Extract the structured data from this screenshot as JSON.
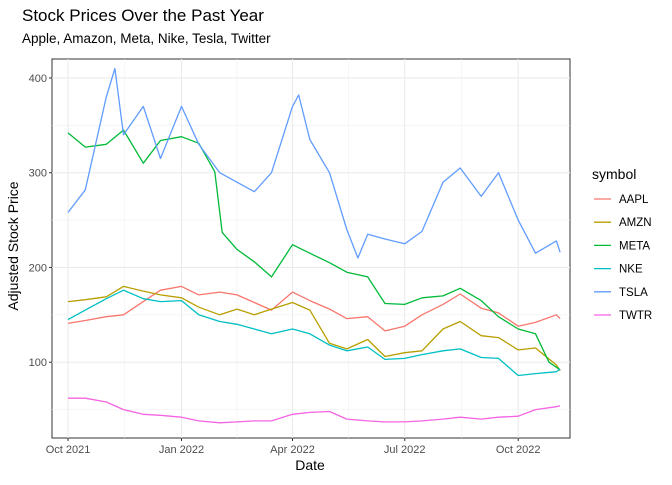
{
  "chart_data": {
    "type": "line",
    "title": "Stock Prices Over the Past Year",
    "subtitle": "Apple, Amazon, Meta, Nike, Tesla, Twitter",
    "xlabel": "Date",
    "ylabel": "Adjusted Stock Price",
    "x_ticks": [
      {
        "date": "2021-10-01",
        "label": "Oct 2021"
      },
      {
        "date": "2022-01-01",
        "label": "Jan 2022"
      },
      {
        "date": "2022-04-01",
        "label": "Apr 2022"
      },
      {
        "date": "2022-07-01",
        "label": "Jul 2022"
      },
      {
        "date": "2022-10-01",
        "label": "Oct 2022"
      }
    ],
    "xlim": [
      "2021-09-18",
      "2022-11-12"
    ],
    "y_ticks": [
      100,
      200,
      300,
      400
    ],
    "ylim": [
      20,
      420
    ],
    "grid": true,
    "legend": {
      "title": "symbol",
      "position": "right"
    },
    "series": [
      {
        "name": "AAPL",
        "color": "#F8766D",
        "points": [
          [
            "2021-10-01",
            141
          ],
          [
            "2021-10-15",
            144
          ],
          [
            "2021-11-01",
            148
          ],
          [
            "2021-11-15",
            150
          ],
          [
            "2021-12-01",
            164
          ],
          [
            "2021-12-15",
            176
          ],
          [
            "2022-01-01",
            180
          ],
          [
            "2022-01-15",
            171
          ],
          [
            "2022-02-01",
            174
          ],
          [
            "2022-02-15",
            171
          ],
          [
            "2022-03-01",
            163
          ],
          [
            "2022-03-15",
            155
          ],
          [
            "2022-04-01",
            174
          ],
          [
            "2022-04-15",
            165
          ],
          [
            "2022-05-01",
            156
          ],
          [
            "2022-05-15",
            146
          ],
          [
            "2022-06-01",
            148
          ],
          [
            "2022-06-15",
            133
          ],
          [
            "2022-07-01",
            138
          ],
          [
            "2022-07-15",
            150
          ],
          [
            "2022-08-01",
            161
          ],
          [
            "2022-08-15",
            172
          ],
          [
            "2022-09-01",
            157
          ],
          [
            "2022-09-15",
            152
          ],
          [
            "2022-10-01",
            138
          ],
          [
            "2022-10-15",
            142
          ],
          [
            "2022-11-01",
            150
          ],
          [
            "2022-11-04",
            146
          ]
        ]
      },
      {
        "name": "AMZN",
        "color": "#B79F00",
        "points": [
          [
            "2021-10-01",
            164
          ],
          [
            "2021-10-15",
            166
          ],
          [
            "2021-11-01",
            169
          ],
          [
            "2021-11-15",
            180
          ],
          [
            "2021-12-01",
            175
          ],
          [
            "2021-12-15",
            171
          ],
          [
            "2022-01-01",
            168
          ],
          [
            "2022-01-15",
            158
          ],
          [
            "2022-02-01",
            150
          ],
          [
            "2022-02-15",
            156
          ],
          [
            "2022-03-01",
            150
          ],
          [
            "2022-03-15",
            156
          ],
          [
            "2022-04-01",
            163
          ],
          [
            "2022-04-15",
            155
          ],
          [
            "2022-05-01",
            120
          ],
          [
            "2022-05-15",
            114
          ],
          [
            "2022-06-01",
            124
          ],
          [
            "2022-06-15",
            106
          ],
          [
            "2022-07-01",
            110
          ],
          [
            "2022-07-15",
            112
          ],
          [
            "2022-08-01",
            135
          ],
          [
            "2022-08-15",
            143
          ],
          [
            "2022-09-01",
            128
          ],
          [
            "2022-09-15",
            126
          ],
          [
            "2022-10-01",
            113
          ],
          [
            "2022-10-15",
            115
          ],
          [
            "2022-11-01",
            97
          ],
          [
            "2022-11-04",
            91
          ]
        ]
      },
      {
        "name": "META",
        "color": "#00BA38",
        "points": [
          [
            "2021-10-01",
            342
          ],
          [
            "2021-10-15",
            327
          ],
          [
            "2021-11-01",
            330
          ],
          [
            "2021-11-15",
            345
          ],
          [
            "2021-12-01",
            310
          ],
          [
            "2021-12-15",
            334
          ],
          [
            "2022-01-01",
            338
          ],
          [
            "2022-01-15",
            331
          ],
          [
            "2022-01-28",
            301
          ],
          [
            "2022-02-03",
            237
          ],
          [
            "2022-02-15",
            219
          ],
          [
            "2022-03-01",
            206
          ],
          [
            "2022-03-15",
            190
          ],
          [
            "2022-04-01",
            224
          ],
          [
            "2022-04-15",
            215
          ],
          [
            "2022-05-01",
            205
          ],
          [
            "2022-05-15",
            195
          ],
          [
            "2022-06-01",
            190
          ],
          [
            "2022-06-15",
            162
          ],
          [
            "2022-07-01",
            161
          ],
          [
            "2022-07-15",
            168
          ],
          [
            "2022-08-01",
            170
          ],
          [
            "2022-08-15",
            178
          ],
          [
            "2022-09-01",
            165
          ],
          [
            "2022-09-15",
            148
          ],
          [
            "2022-10-01",
            135
          ],
          [
            "2022-10-15",
            130
          ],
          [
            "2022-10-26",
            100
          ],
          [
            "2022-11-04",
            92
          ]
        ]
      },
      {
        "name": "NKE",
        "color": "#00BFC4",
        "points": [
          [
            "2021-10-01",
            145
          ],
          [
            "2021-10-15",
            155
          ],
          [
            "2021-11-01",
            167
          ],
          [
            "2021-11-15",
            176
          ],
          [
            "2021-12-01",
            167
          ],
          [
            "2021-12-15",
            164
          ],
          [
            "2022-01-01",
            165
          ],
          [
            "2022-01-15",
            150
          ],
          [
            "2022-02-01",
            143
          ],
          [
            "2022-02-15",
            140
          ],
          [
            "2022-03-01",
            135
          ],
          [
            "2022-03-15",
            130
          ],
          [
            "2022-04-01",
            135
          ],
          [
            "2022-04-15",
            130
          ],
          [
            "2022-05-01",
            118
          ],
          [
            "2022-05-15",
            112
          ],
          [
            "2022-06-01",
            116
          ],
          [
            "2022-06-15",
            103
          ],
          [
            "2022-07-01",
            104
          ],
          [
            "2022-07-15",
            108
          ],
          [
            "2022-08-01",
            112
          ],
          [
            "2022-08-15",
            114
          ],
          [
            "2022-09-01",
            105
          ],
          [
            "2022-09-15",
            104
          ],
          [
            "2022-10-01",
            86
          ],
          [
            "2022-10-15",
            88
          ],
          [
            "2022-11-01",
            90
          ],
          [
            "2022-11-04",
            93
          ]
        ]
      },
      {
        "name": "TSLA",
        "color": "#619CFF",
        "points": [
          [
            "2021-10-01",
            258
          ],
          [
            "2021-10-15",
            282
          ],
          [
            "2021-11-01",
            380
          ],
          [
            "2021-11-08",
            410
          ],
          [
            "2021-11-15",
            340
          ],
          [
            "2021-12-01",
            370
          ],
          [
            "2021-12-15",
            315
          ],
          [
            "2022-01-01",
            370
          ],
          [
            "2022-01-15",
            330
          ],
          [
            "2022-02-01",
            300
          ],
          [
            "2022-02-15",
            290
          ],
          [
            "2022-03-01",
            280
          ],
          [
            "2022-03-15",
            300
          ],
          [
            "2022-04-01",
            370
          ],
          [
            "2022-04-06",
            382
          ],
          [
            "2022-04-15",
            335
          ],
          [
            "2022-05-01",
            300
          ],
          [
            "2022-05-15",
            240
          ],
          [
            "2022-05-24",
            210
          ],
          [
            "2022-06-01",
            235
          ],
          [
            "2022-06-15",
            230
          ],
          [
            "2022-07-01",
            225
          ],
          [
            "2022-07-15",
            238
          ],
          [
            "2022-08-01",
            290
          ],
          [
            "2022-08-15",
            305
          ],
          [
            "2022-09-01",
            275
          ],
          [
            "2022-09-15",
            300
          ],
          [
            "2022-10-01",
            250
          ],
          [
            "2022-10-15",
            215
          ],
          [
            "2022-11-01",
            228
          ],
          [
            "2022-11-04",
            216
          ]
        ]
      },
      {
        "name": "TWTR",
        "color": "#F564E3",
        "points": [
          [
            "2021-10-01",
            62
          ],
          [
            "2021-10-15",
            62
          ],
          [
            "2021-11-01",
            58
          ],
          [
            "2021-11-15",
            50
          ],
          [
            "2021-12-01",
            45
          ],
          [
            "2021-12-15",
            44
          ],
          [
            "2022-01-01",
            42
          ],
          [
            "2022-01-15",
            38
          ],
          [
            "2022-02-01",
            36
          ],
          [
            "2022-02-15",
            37
          ],
          [
            "2022-03-01",
            38
          ],
          [
            "2022-03-15",
            38
          ],
          [
            "2022-04-01",
            45
          ],
          [
            "2022-04-15",
            47
          ],
          [
            "2022-05-01",
            48
          ],
          [
            "2022-05-15",
            40
          ],
          [
            "2022-06-01",
            38
          ],
          [
            "2022-06-15",
            37
          ],
          [
            "2022-07-01",
            37
          ],
          [
            "2022-07-15",
            38
          ],
          [
            "2022-08-01",
            40
          ],
          [
            "2022-08-15",
            42
          ],
          [
            "2022-09-01",
            40
          ],
          [
            "2022-09-15",
            42
          ],
          [
            "2022-10-01",
            43
          ],
          [
            "2022-10-15",
            50
          ],
          [
            "2022-11-01",
            53
          ],
          [
            "2022-11-04",
            54
          ]
        ]
      }
    ]
  }
}
